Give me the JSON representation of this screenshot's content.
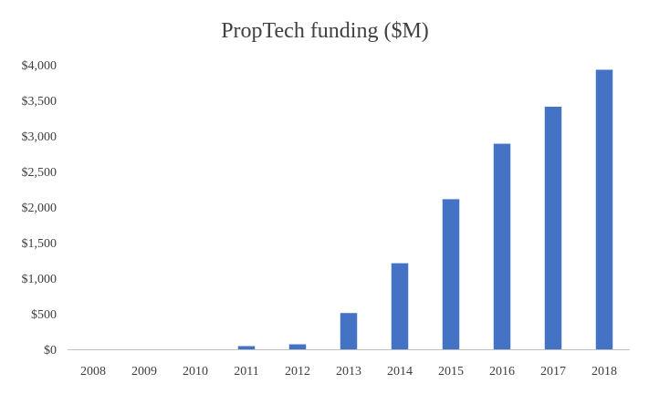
{
  "chart_data": {
    "type": "bar",
    "title": "PropTech funding ($M)",
    "xlabel": "",
    "ylabel": "",
    "categories": [
      "2008",
      "2009",
      "2010",
      "2011",
      "2012",
      "2013",
      "2014",
      "2015",
      "2016",
      "2017",
      "2018"
    ],
    "values": [
      0,
      0,
      0,
      45,
      70,
      510,
      1210,
      2110,
      2890,
      3410,
      3930
    ],
    "ylim": [
      0,
      4000
    ],
    "y_ticks": [
      0,
      500,
      1000,
      1500,
      2000,
      2500,
      3000,
      3500,
      4000
    ],
    "y_tick_labels": [
      "$0",
      "$500",
      "$1,000",
      "$1,500",
      "$2,000",
      "$2,500",
      "$3,000",
      "$3,500",
      "$4,000"
    ],
    "grid": false,
    "legend": "none",
    "bar_color": "#4472C4",
    "axis_color": "#BFBFBF"
  }
}
